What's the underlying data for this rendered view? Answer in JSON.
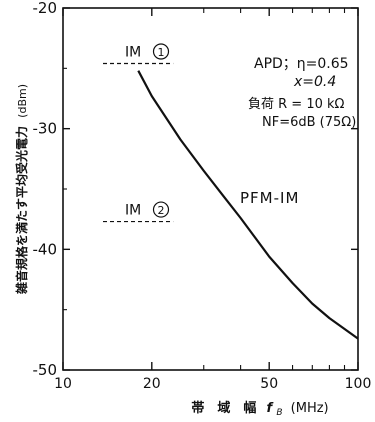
{
  "chart_data": {
    "type": "line",
    "xscale": "log",
    "xlim": [
      10,
      100
    ],
    "ylim": [
      -50,
      -20
    ],
    "xticks": [
      10,
      20,
      50,
      100
    ],
    "yticks": [
      -20,
      -30,
      -40,
      -50
    ],
    "xtick_labels": [
      "10",
      "20",
      "50",
      "100"
    ],
    "ytick_labels": [
      "-20",
      "-30",
      "-40",
      "-50"
    ],
    "xlabel": "帯　域　幅　f_B (MHz)",
    "ylabel": "雑音規格を満たす平均受光電力 (dBm)",
    "grid": false,
    "series": [
      {
        "name": "PFM-IM",
        "x": [
          18,
          20,
          25,
          30,
          35,
          40,
          50,
          60,
          70,
          80,
          100
        ],
        "y": [
          -25.2,
          -27.3,
          -30.9,
          -33.5,
          -35.6,
          -37.4,
          -40.6,
          -42.8,
          -44.5,
          -45.7,
          -47.4
        ]
      }
    ],
    "reference_lines": [
      {
        "label": "IM ①",
        "y": -24.6,
        "x_range": [
          10,
          24
        ]
      },
      {
        "label": "IM ②",
        "y": -37.7,
        "x_range": [
          10,
          24
        ]
      }
    ],
    "annotations": [
      "APD；η=0.65",
      "x=0.4",
      "負荷 R = 10 kΩ",
      "NF=6dB (75Ω)"
    ]
  },
  "labels": {
    "xlabel_main": "帯　域　幅",
    "xlabel_var": "f",
    "xlabel_sub": "B",
    "xlabel_unit": "(MHz)",
    "ylabel_main": "雑音規格を満たす平均受光電力",
    "ylabel_unit": "(dBm)",
    "series_label": "PFM-IM"
  }
}
